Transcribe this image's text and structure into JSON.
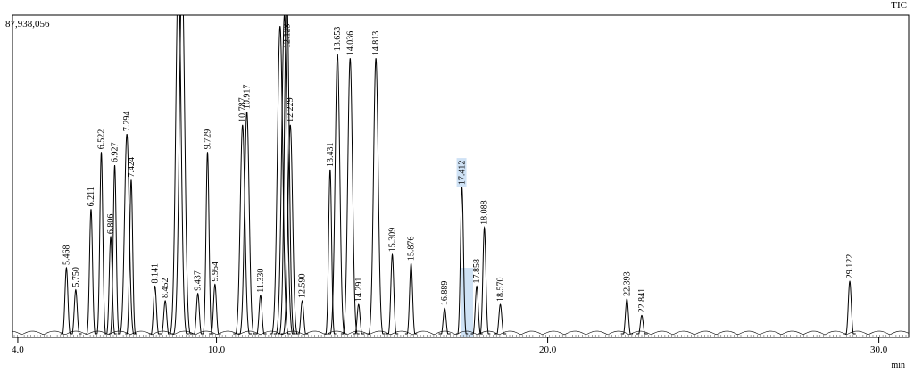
{
  "chart_data": {
    "type": "chromatogram",
    "title": "TIC",
    "xlabel": "min",
    "xlim": [
      3.84,
      30.9
    ],
    "xticks": [
      {
        "value": 4,
        "label": "4.0"
      },
      {
        "value": 10,
        "label": "10.0"
      },
      {
        "value": 20,
        "label": "20.0"
      },
      {
        "value": 30,
        "label": "30.0"
      }
    ],
    "ylim": [
      0,
      87938056
    ],
    "yticks": [
      {
        "value": 87938056,
        "label": "87,938,056"
      }
    ],
    "color": "#000000",
    "x": [
      5.468,
      5.75,
      6.211,
      6.522,
      6.806,
      6.927,
      7.294,
      7.424,
      8.141,
      8.452,
      8.85,
      8.96,
      9.437,
      9.729,
      9.954,
      10.787,
      10.917,
      11.33,
      11.92,
      12.05,
      12.123,
      12.229,
      12.59,
      13.431,
      13.653,
      14.036,
      14.291,
      14.813,
      15.309,
      15.876,
      16.889,
      17.412,
      17.858,
      18.088,
      18.57,
      22.393,
      22.841,
      29.122
    ],
    "values": [
      19000000,
      13000000,
      35000000,
      50600000,
      27500000,
      47000000,
      55500000,
      43000000,
      14000000,
      10000000,
      100000000,
      100000000,
      12000000,
      50600000,
      14500000,
      58000000,
      61600000,
      11500000,
      85000000,
      88000000,
      95000000,
      58000000,
      10000000,
      45800000,
      77400000,
      76200000,
      9000000,
      76200000,
      22600000,
      20200000,
      8000000,
      40900000,
      14000000,
      30000000,
      9000000,
      10500000,
      6000000,
      15300000
    ],
    "labels": [
      "5.468",
      "5.750",
      "6.211",
      "6.522",
      "6.806",
      "6.927",
      "7.294",
      "7.424",
      "8.141",
      "8.452",
      null,
      null,
      "9.437",
      "9.729",
      "9.954",
      "10.787",
      "10.917",
      "11.330",
      null,
      null,
      "12.123",
      "12.229",
      "12.590",
      "13.431",
      "13.653",
      "14.036",
      "14.291",
      "14.813",
      "15.309",
      "15.876",
      "16.889",
      "17.412",
      "17.858",
      "18.088",
      "18.570",
      "22.393",
      "22.841",
      "29.122"
    ]
  }
}
